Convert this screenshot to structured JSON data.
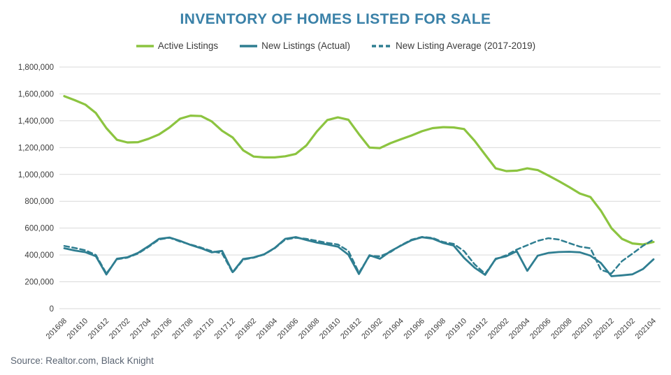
{
  "title": "INVENTORY OF HOMES LISTED FOR SALE",
  "source": "Source: Realtor.com, Black Knight",
  "colors": {
    "title": "#3A81A8",
    "active_listings": "#8CC440",
    "new_listings": "#2F7E91",
    "grid": "#D9D9D9",
    "axis_text": "#3C3C3C",
    "source_text": "#5A6472",
    "background": "#FFFFFF"
  },
  "legend": {
    "items": [
      {
        "label": "Active Listings",
        "series_index": 0,
        "style": "solid"
      },
      {
        "label": "New Listings (Actual)",
        "series_index": 1,
        "style": "solid"
      },
      {
        "label": "New Listing Average (2017-2019)",
        "series_index": 2,
        "style": "dashed"
      }
    ]
  },
  "chart_data": {
    "type": "line",
    "title": "INVENTORY OF HOMES LISTED FOR SALE",
    "xlabel": "",
    "ylabel": "",
    "ylim": [
      0,
      1800000
    ],
    "y_tick_step": 200000,
    "y_tick_labels": [
      "0",
      "200,000",
      "400,000",
      "600,000",
      "800,000",
      "1,000,000",
      "1,200,000",
      "1,400,000",
      "1,600,000",
      "1,800,000"
    ],
    "grid": true,
    "legend_position": "top",
    "x_tick_every": 2,
    "x": [
      "201608",
      "201609",
      "201610",
      "201611",
      "201612",
      "201701",
      "201702",
      "201703",
      "201704",
      "201705",
      "201706",
      "201707",
      "201708",
      "201709",
      "201710",
      "201711",
      "201712",
      "201801",
      "201802",
      "201803",
      "201804",
      "201805",
      "201806",
      "201807",
      "201808",
      "201809",
      "201810",
      "201811",
      "201812",
      "201901",
      "201902",
      "201903",
      "201904",
      "201905",
      "201906",
      "201907",
      "201908",
      "201909",
      "201910",
      "201911",
      "201912",
      "202001",
      "202002",
      "202003",
      "202004",
      "202005",
      "202006",
      "202007",
      "202008",
      "202009",
      "202010",
      "202011",
      "202012",
      "202101",
      "202102",
      "202103",
      "202104"
    ],
    "x_tick_labels": [
      "201608",
      "201610",
      "201612",
      "201702",
      "201704",
      "201706",
      "201708",
      "201710",
      "201712",
      "201802",
      "201804",
      "201806",
      "201808",
      "201810",
      "201812",
      "201902",
      "201904",
      "201906",
      "201908",
      "201910",
      "201912",
      "202002",
      "202004",
      "202006",
      "202008",
      "202010",
      "202012",
      "202102",
      "202104"
    ],
    "series": [
      {
        "name": "Active Listings",
        "color": "#8CC440",
        "style": "solid",
        "width": 3.2,
        "values": [
          1583000,
          1553000,
          1520000,
          1457000,
          1345000,
          1258000,
          1238000,
          1240000,
          1265000,
          1298000,
          1350000,
          1415000,
          1438000,
          1435000,
          1395000,
          1325000,
          1275000,
          1180000,
          1133000,
          1127000,
          1127000,
          1135000,
          1153000,
          1215000,
          1320000,
          1405000,
          1425000,
          1408000,
          1300000,
          1200000,
          1196000,
          1233000,
          1262000,
          1290000,
          1322000,
          1345000,
          1352000,
          1350000,
          1338000,
          1250000,
          1147000,
          1045000,
          1025000,
          1028000,
          1045000,
          1032000,
          992000,
          950000,
          905000,
          858000,
          832000,
          730000,
          600000,
          520000,
          486000,
          478000,
          497000
        ]
      },
      {
        "name": "New Listings (Actual)",
        "color": "#2F7E91",
        "style": "solid",
        "width": 2.8,
        "values": [
          450000,
          433000,
          421000,
          390000,
          255000,
          372000,
          383000,
          415000,
          465000,
          520000,
          530000,
          505000,
          475000,
          450000,
          420000,
          430000,
          272000,
          370000,
          382000,
          405000,
          452000,
          520000,
          533000,
          512000,
          492000,
          478000,
          462000,
          402000,
          258000,
          398000,
          372000,
          428000,
          470000,
          510000,
          532000,
          522000,
          490000,
          470000,
          378000,
          305000,
          252000,
          372000,
          390000,
          428000,
          282000,
          395000,
          415000,
          422000,
          424000,
          420000,
          395000,
          340000,
          242000,
          248000,
          256000,
          295000,
          368000
        ]
      },
      {
        "name": "New Listing Average (2017-2019)",
        "color": "#2F7E91",
        "style": "dashed",
        "width": 2.5,
        "values": [
          467000,
          452000,
          435000,
          400000,
          262000,
          368000,
          380000,
          410000,
          460000,
          515000,
          528000,
          500000,
          478000,
          455000,
          428000,
          412000,
          268000,
          365000,
          380000,
          403000,
          450000,
          515000,
          528000,
          520000,
          505000,
          490000,
          478000,
          430000,
          268000,
          392000,
          390000,
          422000,
          473000,
          514000,
          535000,
          527000,
          497000,
          483000,
          428000,
          330000,
          260000,
          368000,
          398000,
          440000,
          473000,
          505000,
          525000,
          515000,
          488000,
          462000,
          450000,
          290000,
          262000,
          354000,
          410000,
          468000,
          515000
        ]
      }
    ]
  }
}
